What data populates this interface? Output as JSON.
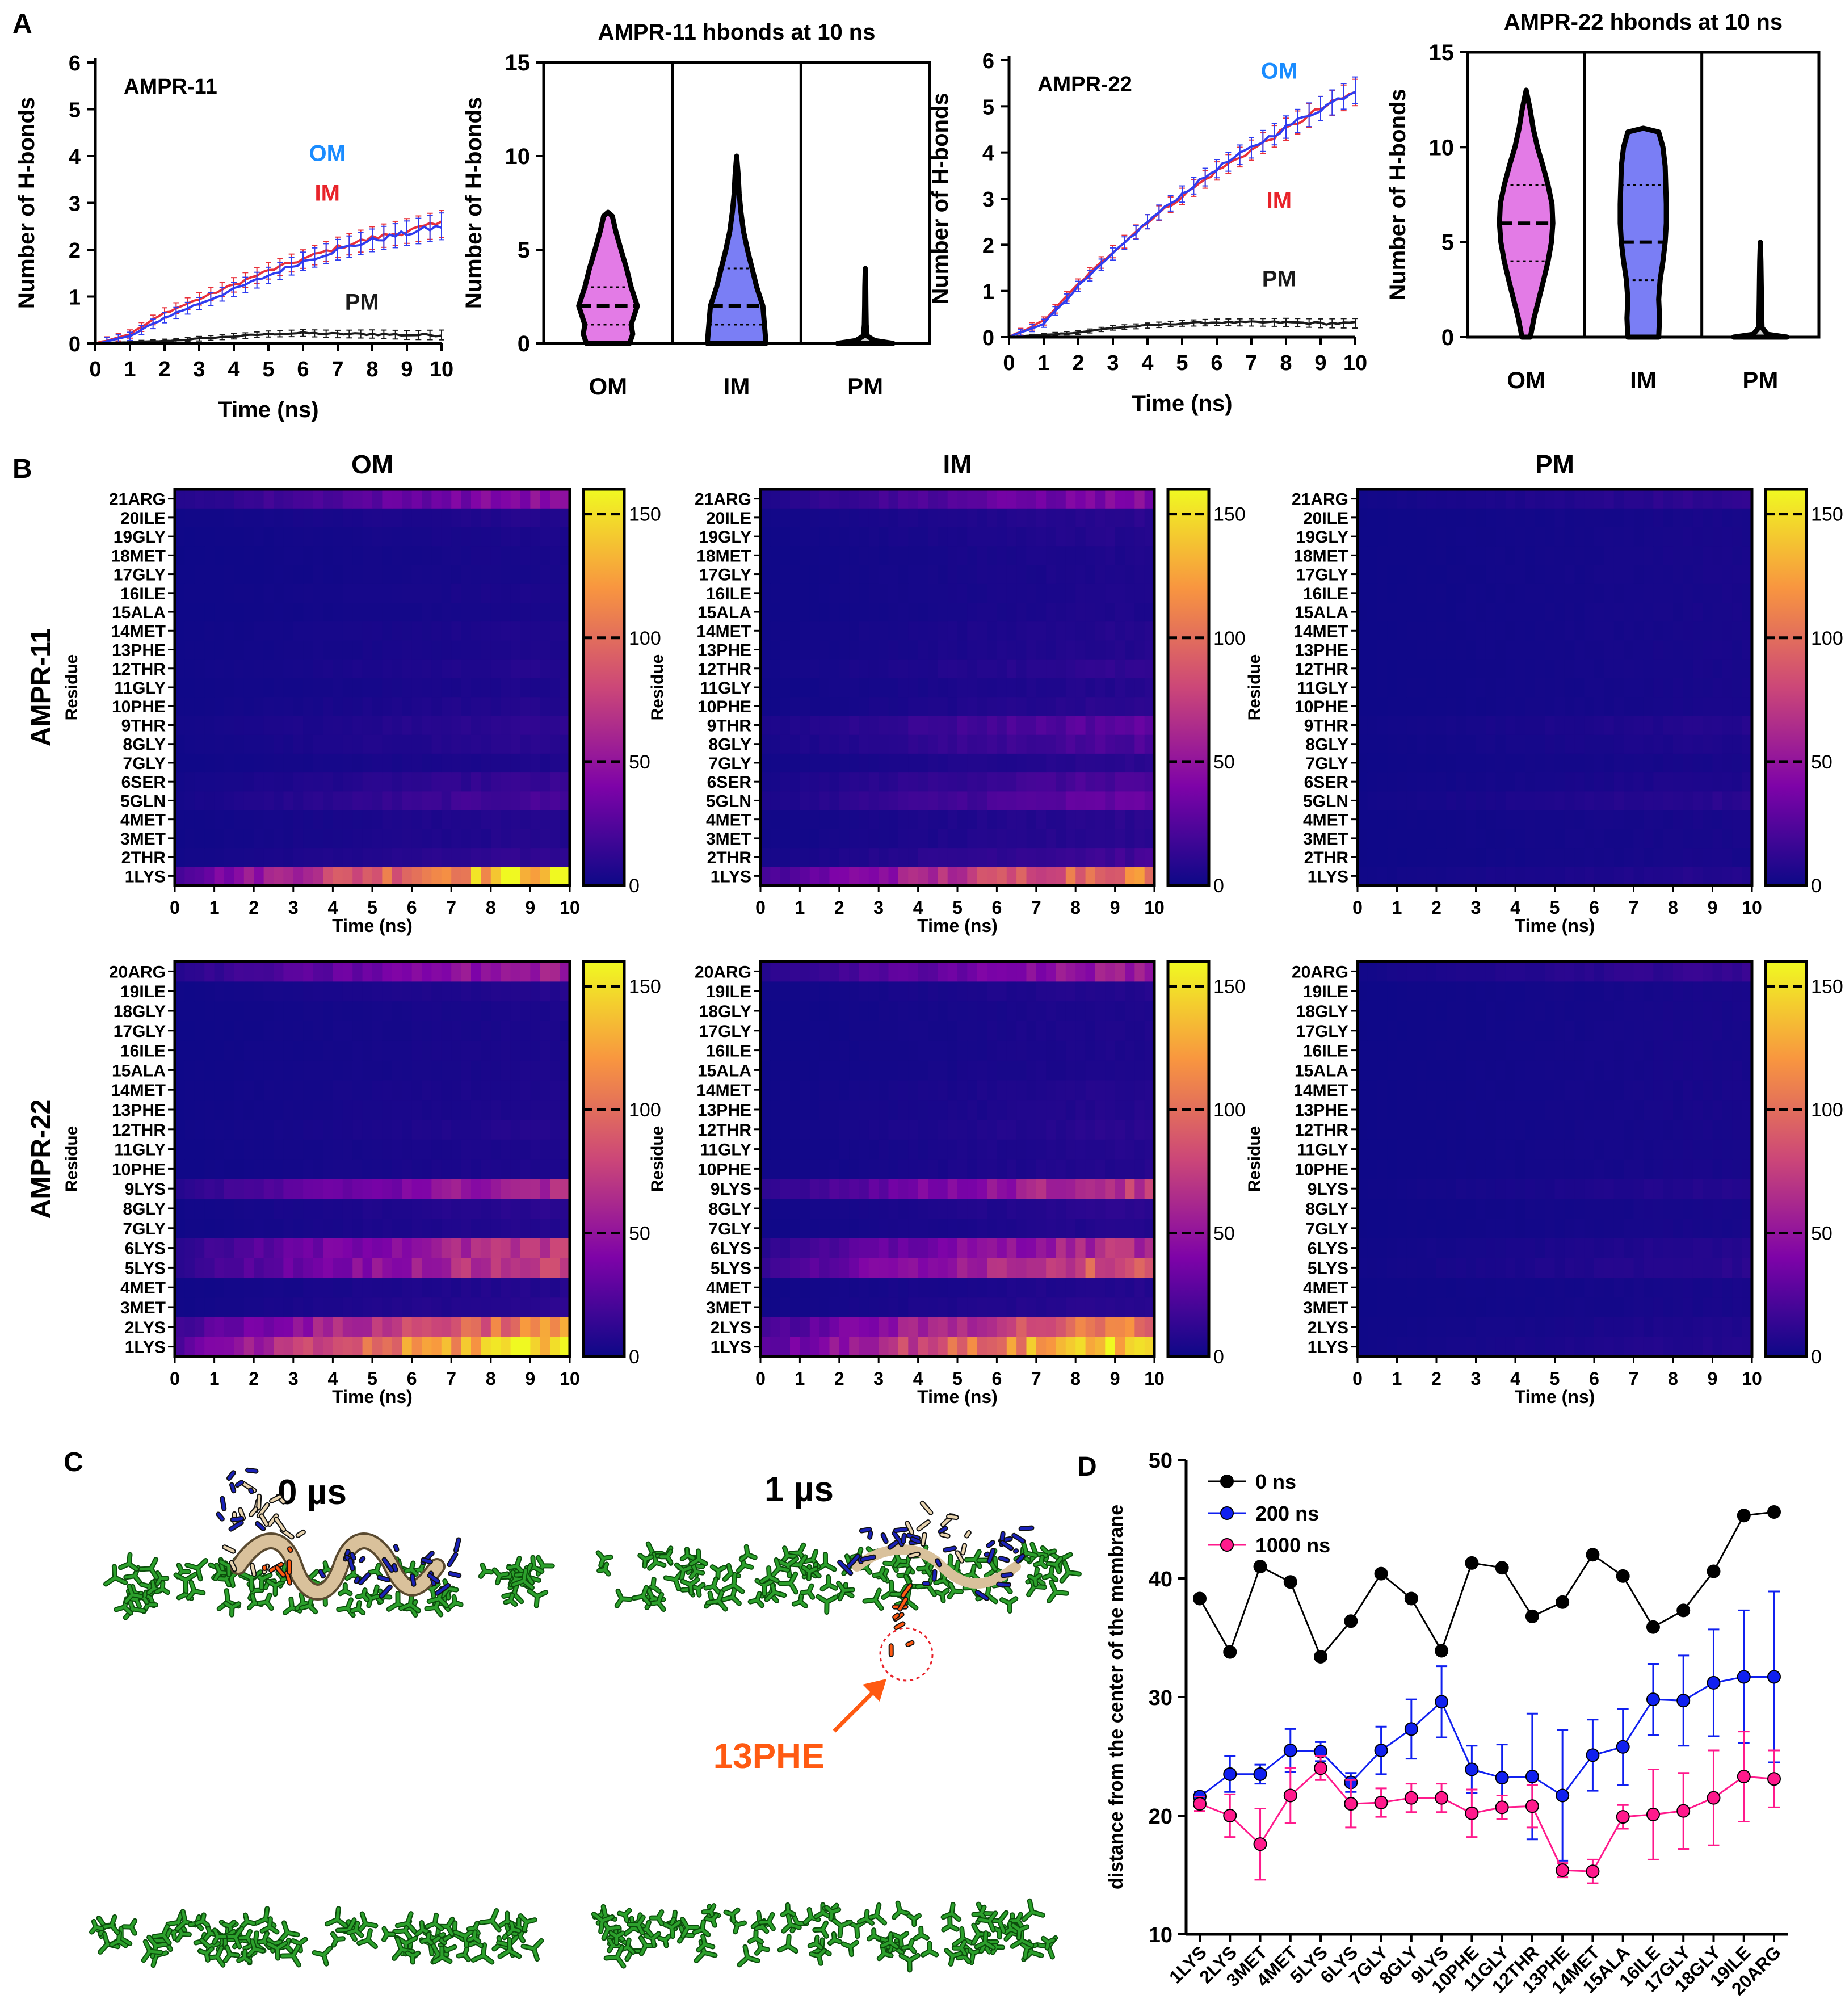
{
  "panel_labels": {
    "a": "A",
    "b": "B",
    "c": "C",
    "d": "D"
  },
  "colors": {
    "om": "#1a8cff",
    "im": "#e8232a",
    "pm": "#1a1a1a",
    "series_blue": "#2f3cf0",
    "series_red": "#e8303a",
    "violin_om": "#e37be6",
    "violin_im": "#7a7ef5",
    "violin_pm": "#cfcfcf",
    "green": "#2ca02c",
    "orange": "#ff5a12",
    "d_black": "#000000",
    "d_blue": "#1020f0",
    "d_pink": "#ff1a8c"
  },
  "chart_data": [
    {
      "id": "A1",
      "type": "line",
      "annotation": "AMPR-11",
      "xlabel": "Time (ns)",
      "ylabel": "Number of H-bonds",
      "xlim": [
        0,
        10
      ],
      "ylim": [
        0,
        6
      ],
      "xticks": [
        "0",
        "1",
        "2",
        "3",
        "4",
        "5",
        "6",
        "7",
        "8",
        "9",
        "10"
      ],
      "yticks": [
        "0",
        "1",
        "2",
        "3",
        "4",
        "5",
        "6"
      ],
      "series": [
        {
          "name": "OM",
          "label_pos": [
            6.7,
            3.9
          ],
          "x": [
            0,
            1,
            2,
            3,
            4,
            5,
            6,
            7,
            8,
            9,
            10
          ],
          "values": [
            0,
            0.15,
            0.55,
            0.85,
            1.15,
            1.45,
            1.75,
            2.0,
            2.2,
            2.35,
            2.5
          ]
        },
        {
          "name": "IM",
          "label_pos": [
            6.7,
            3.05
          ],
          "x": [
            0,
            1,
            2,
            3,
            4,
            5,
            6,
            7,
            8,
            9,
            10
          ],
          "values": [
            0,
            0.2,
            0.65,
            0.95,
            1.25,
            1.55,
            1.8,
            2.05,
            2.25,
            2.4,
            2.55
          ]
        },
        {
          "name": "PM",
          "label_pos": [
            7.7,
            0.72
          ],
          "x": [
            0,
            1,
            2,
            3,
            4,
            5,
            6,
            7,
            8,
            9,
            10
          ],
          "values": [
            0,
            0.02,
            0.05,
            0.1,
            0.15,
            0.2,
            0.22,
            0.2,
            0.2,
            0.18,
            0.18
          ]
        }
      ]
    },
    {
      "id": "A2",
      "type": "violin",
      "title": "AMPR-11 hbonds at 10 ns",
      "ylabel": "Number of H-bonds",
      "ylim": [
        0,
        15
      ],
      "yticks": [
        "0",
        "5",
        "10",
        "15"
      ],
      "categories": [
        "OM",
        "IM",
        "PM"
      ],
      "violins": [
        {
          "max": 7,
          "median": 2,
          "q1": 1,
          "q3": 3,
          "profile": [
            [
              0,
              0.7
            ],
            [
              0.5,
              0.8
            ],
            [
              1,
              0.75
            ],
            [
              1.5,
              0.85
            ],
            [
              2,
              0.95
            ],
            [
              3,
              0.75
            ],
            [
              4,
              0.6
            ],
            [
              5,
              0.42
            ],
            [
              6,
              0.25
            ],
            [
              6.8,
              0.14
            ],
            [
              7,
              0.0
            ]
          ]
        },
        {
          "max": 10,
          "median": 2,
          "q1": 1,
          "q3": 4,
          "profile": [
            [
              0,
              0.95
            ],
            [
              1,
              0.9
            ],
            [
              2,
              0.85
            ],
            [
              3,
              0.65
            ],
            [
              4,
              0.5
            ],
            [
              5,
              0.35
            ],
            [
              6,
              0.22
            ],
            [
              7,
              0.14
            ],
            [
              8,
              0.08
            ],
            [
              9,
              0.05
            ],
            [
              10,
              0.0
            ]
          ]
        },
        {
          "max": 4,
          "median": 0,
          "q1": 0,
          "q3": 0,
          "profile": [
            [
              0,
              0.9
            ],
            [
              0.15,
              0.3
            ],
            [
              0.4,
              0.06
            ],
            [
              1,
              0.03
            ],
            [
              2,
              0.02
            ],
            [
              3,
              0.015
            ],
            [
              4,
              0.0
            ]
          ]
        }
      ]
    },
    {
      "id": "A3",
      "type": "line",
      "annotation": "AMPR-22",
      "xlabel": "Time (ns)",
      "ylabel": "Number of H-bonds",
      "xlim": [
        0,
        10
      ],
      "ylim": [
        0,
        6
      ],
      "xticks": [
        "0",
        "1",
        "2",
        "3",
        "4",
        "5",
        "6",
        "7",
        "8",
        "9",
        "10"
      ],
      "yticks": [
        "0",
        "1",
        "2",
        "3",
        "4",
        "5",
        "6"
      ],
      "series": [
        {
          "name": "OM",
          "label_pos": [
            7.8,
            5.6
          ],
          "x": [
            0,
            1,
            2,
            3,
            4,
            5,
            6,
            7,
            8,
            9,
            10
          ],
          "values": [
            0,
            0.3,
            1.1,
            1.8,
            2.5,
            3.1,
            3.65,
            4.1,
            4.55,
            4.95,
            5.35
          ]
        },
        {
          "name": "IM",
          "label_pos": [
            7.8,
            2.8
          ],
          "x": [
            0,
            1,
            2,
            3,
            4,
            5,
            6,
            7,
            8,
            9,
            10
          ],
          "values": [
            0,
            0.35,
            1.15,
            1.85,
            2.5,
            3.05,
            3.6,
            4.05,
            4.5,
            4.95,
            5.3
          ]
        },
        {
          "name": "PM",
          "label_pos": [
            7.8,
            1.1
          ],
          "x": [
            0,
            1,
            2,
            3,
            4,
            5,
            6,
            7,
            8,
            9,
            10
          ],
          "values": [
            0,
            0.05,
            0.1,
            0.2,
            0.25,
            0.3,
            0.32,
            0.32,
            0.32,
            0.3,
            0.3
          ]
        }
      ]
    },
    {
      "id": "A4",
      "type": "violin",
      "title": "AMPR-22 hbonds at 10 ns",
      "ylabel": "Number of H-bonds",
      "ylim": [
        0,
        15
      ],
      "yticks": [
        "0",
        "5",
        "10",
        "15"
      ],
      "categories": [
        "OM",
        "IM",
        "PM"
      ],
      "violins": [
        {
          "max": 13,
          "median": 6,
          "q1": 4,
          "q3": 8,
          "profile": [
            [
              0,
              0.15
            ],
            [
              1,
              0.28
            ],
            [
              2,
              0.45
            ],
            [
              3,
              0.62
            ],
            [
              4,
              0.78
            ],
            [
              5,
              0.9
            ],
            [
              6,
              0.95
            ],
            [
              7,
              0.92
            ],
            [
              8,
              0.78
            ],
            [
              9,
              0.6
            ],
            [
              10,
              0.4
            ],
            [
              11,
              0.25
            ],
            [
              12,
              0.14
            ],
            [
              13,
              0.0
            ]
          ]
        },
        {
          "max": 11,
          "median": 5,
          "q1": 3,
          "q3": 8,
          "profile": [
            [
              0,
              0.55
            ],
            [
              1,
              0.58
            ],
            [
              2,
              0.55
            ],
            [
              3,
              0.6
            ],
            [
              4,
              0.7
            ],
            [
              5,
              0.78
            ],
            [
              6,
              0.82
            ],
            [
              7,
              0.82
            ],
            [
              8,
              0.8
            ],
            [
              9,
              0.78
            ],
            [
              10,
              0.7
            ],
            [
              10.8,
              0.55
            ],
            [
              11,
              0.0
            ]
          ]
        },
        {
          "max": 5,
          "median": 0,
          "q1": 0,
          "q3": 0,
          "profile": [
            [
              0,
              0.95
            ],
            [
              0.15,
              0.25
            ],
            [
              0.5,
              0.06
            ],
            [
              1,
              0.05
            ],
            [
              2,
              0.04
            ],
            [
              3,
              0.03
            ],
            [
              4,
              0.02
            ],
            [
              5,
              0.0
            ]
          ]
        }
      ]
    },
    {
      "id": "B",
      "type": "heatmap",
      "columns": [
        "OM",
        "IM",
        "PM"
      ],
      "rows": [
        "AMPR-11",
        "AMPR-22"
      ],
      "xlabel": "Time (ns)",
      "ylabel": "Residue",
      "xticks": [
        "0",
        "1",
        "2",
        "3",
        "4",
        "5",
        "6",
        "7",
        "8",
        "9",
        "10"
      ],
      "colorbar": {
        "min": 0,
        "max": 160,
        "ticks": [
          "0",
          "50",
          "100",
          "150"
        ]
      },
      "residues": {
        "AMPR-11": [
          "1LYS",
          "2THR",
          "3MET",
          "4MET",
          "5GLN",
          "6SER",
          "7GLY",
          "8GLY",
          "9THR",
          "10PHE",
          "11GLY",
          "12THR",
          "13PHE",
          "14MET",
          "15ALA",
          "16ILE",
          "17GLY",
          "18MET",
          "19GLY",
          "20ILE",
          "21ARG"
        ],
        "AMPR-22": [
          "1LYS",
          "2LYS",
          "3MET",
          "4MET",
          "5LYS",
          "6LYS",
          "7GLY",
          "8GLY",
          "9LYS",
          "10PHE",
          "11GLY",
          "12THR",
          "13PHE",
          "14MET",
          "15ALA",
          "16ILE",
          "17GLY",
          "18GLY",
          "19ILE",
          "20ARG"
        ]
      },
      "intensity_at_10ns": {
        "AMPR-11": {
          "OM": [
            150,
            12,
            8,
            8,
            20,
            14,
            6,
            10,
            12,
            8,
            6,
            8,
            6,
            6,
            4,
            5,
            4,
            4,
            5,
            8,
            45
          ],
          "IM": [
            110,
            18,
            10,
            10,
            30,
            22,
            10,
            22,
            28,
            10,
            8,
            12,
            8,
            8,
            6,
            6,
            6,
            6,
            8,
            10,
            42
          ],
          "PM": [
            8,
            4,
            4,
            4,
            10,
            6,
            4,
            6,
            8,
            4,
            4,
            4,
            4,
            4,
            4,
            4,
            4,
            4,
            4,
            4,
            12
          ]
        },
        "AMPR-22": {
          "OM": [
            155,
            110,
            10,
            8,
            75,
            70,
            8,
            10,
            60,
            6,
            6,
            8,
            6,
            6,
            5,
            5,
            5,
            5,
            8,
            55
          ],
          "IM": [
            150,
            105,
            10,
            8,
            90,
            65,
            8,
            10,
            70,
            8,
            8,
            10,
            8,
            8,
            6,
            6,
            6,
            6,
            8,
            55
          ],
          "PM": [
            8,
            6,
            4,
            4,
            10,
            8,
            4,
            4,
            8,
            4,
            4,
            4,
            4,
            4,
            4,
            4,
            4,
            4,
            4,
            14
          ]
        }
      }
    },
    {
      "id": "D",
      "type": "line",
      "ylabel": "distance from the center of the membrane",
      "ylim": [
        10,
        50
      ],
      "yticks": [
        "10",
        "20",
        "30",
        "40",
        "50"
      ],
      "categories": [
        "1LYS",
        "2LYS",
        "3MET",
        "4MET",
        "5LYS",
        "6LYS",
        "7GLY",
        "8GLY",
        "9LYS",
        "10PHE",
        "11GLY",
        "12THR",
        "13PHE",
        "14MET",
        "15ALA",
        "16ILE",
        "17GLY",
        "18GLY",
        "19ILE",
        "20ARG"
      ],
      "series": [
        {
          "name": "0 ns",
          "values": [
            38.3,
            33.8,
            41.0,
            39.7,
            33.4,
            36.4,
            40.4,
            38.3,
            33.9,
            41.3,
            40.9,
            36.8,
            38.0,
            42.0,
            40.2,
            35.9,
            37.3,
            40.6,
            45.3,
            45.6
          ],
          "errors": []
        },
        {
          "name": "200 ns",
          "values": [
            21.6,
            23.5,
            23.5,
            25.5,
            25.4,
            22.8,
            25.5,
            27.3,
            29.6,
            23.9,
            23.2,
            23.3,
            21.7,
            25.1,
            25.8,
            29.8,
            29.7,
            31.2,
            31.7,
            31.7
          ],
          "errors": [
            0.4,
            1.5,
            0.8,
            1.8,
            0.8,
            0.8,
            2.0,
            2.5,
            3.0,
            2.0,
            2.8,
            5.3,
            5.5,
            3.0,
            3.2,
            3.0,
            3.8,
            4.5,
            5.6,
            7.2
          ]
        },
        {
          "name": "1000 ns",
          "values": [
            21.0,
            20.0,
            17.6,
            21.7,
            24.0,
            21.0,
            21.1,
            21.5,
            21.5,
            20.2,
            20.7,
            20.8,
            15.4,
            15.3,
            19.9,
            20.1,
            20.4,
            21.5,
            23.3,
            23.1
          ],
          "errors": [
            0.6,
            1.8,
            3.0,
            2.3,
            1.0,
            2.0,
            1.2,
            1.2,
            1.2,
            2.0,
            1.0,
            1.8,
            0.6,
            1.0,
            1.0,
            3.8,
            3.2,
            4.0,
            3.8,
            2.4
          ]
        }
      ]
    }
  ],
  "panel_c": {
    "time_left": "0 µs",
    "time_right": "1 µs",
    "residue_callout": "13PHE"
  }
}
